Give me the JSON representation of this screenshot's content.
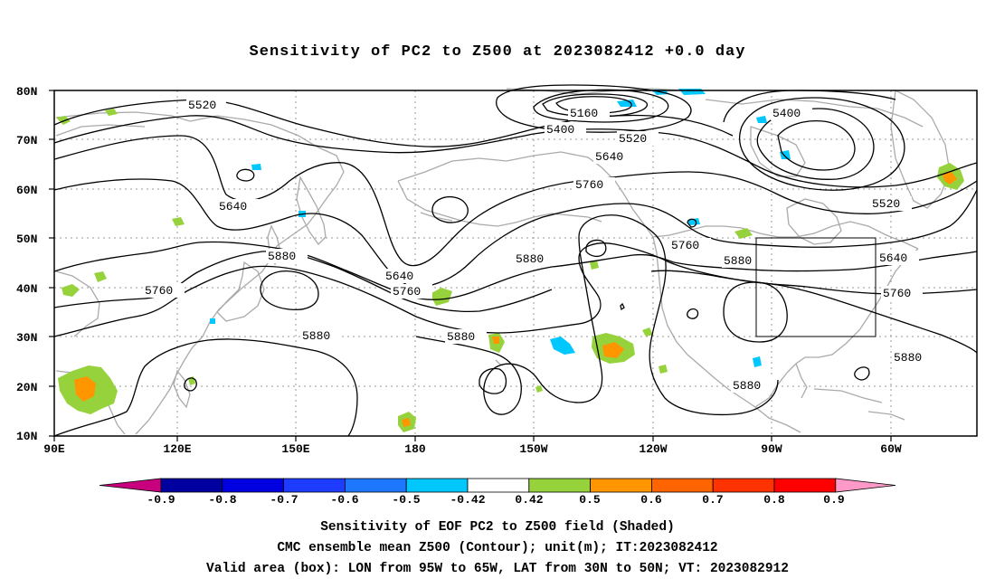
{
  "title": "Sensitivity of PC2 to Z500 at 2023082412 +0.0 day",
  "captions": {
    "line1": "Sensitivity of EOF PC2 to Z500 field (Shaded)",
    "line2": "CMC ensemble mean Z500 (Contour); unit(m); IT:2023082412",
    "line3": "Valid area (box): LON from 95W to 65W, LAT from 30N to 50N; VT: 2023082912"
  },
  "map": {
    "lon_ticks": [
      "90E",
      "120E",
      "150E",
      "180",
      "150W",
      "120W",
      "90W",
      "60W"
    ],
    "lat_ticks": [
      "80N",
      "70N",
      "60N",
      "50N",
      "40N",
      "30N",
      "20N",
      "10N"
    ],
    "contour_labels": [
      "5520",
      "5160",
      "5400",
      "5520",
      "5640",
      "5760",
      "5400",
      "5640",
      "5880",
      "5640",
      "5760",
      "5880",
      "5760",
      "5760",
      "5880",
      "5520",
      "5640",
      "5880",
      "5760",
      "5880",
      "5880",
      "5880"
    ],
    "box_valid_area": {
      "lon_west": "95W",
      "lon_east": "65W",
      "lat_south": "30N",
      "lat_north": "50N"
    }
  },
  "colorbar": {
    "labels": [
      "-0.9",
      "-0.8",
      "-0.7",
      "-0.6",
      "-0.5",
      "-0.42",
      "0.42",
      "0.5",
      "0.6",
      "0.7",
      "0.8",
      "0.9"
    ],
    "colors": [
      "#c8007e",
      "#0000a0",
      "#0000e0",
      "#1e3cff",
      "#1e78ff",
      "#00c8ff",
      "#ffffff",
      "#96d23c",
      "#ff9600",
      "#ff6400",
      "#ff3200",
      "#ff0000",
      "#ff9ac8"
    ]
  },
  "colors": {
    "coast": "#aaaaaa",
    "grid": "#999999",
    "contour": "#000000",
    "pos_shade": "#96d23c",
    "orange": "#ff9600",
    "neg_shade": "#00c8ff"
  }
}
